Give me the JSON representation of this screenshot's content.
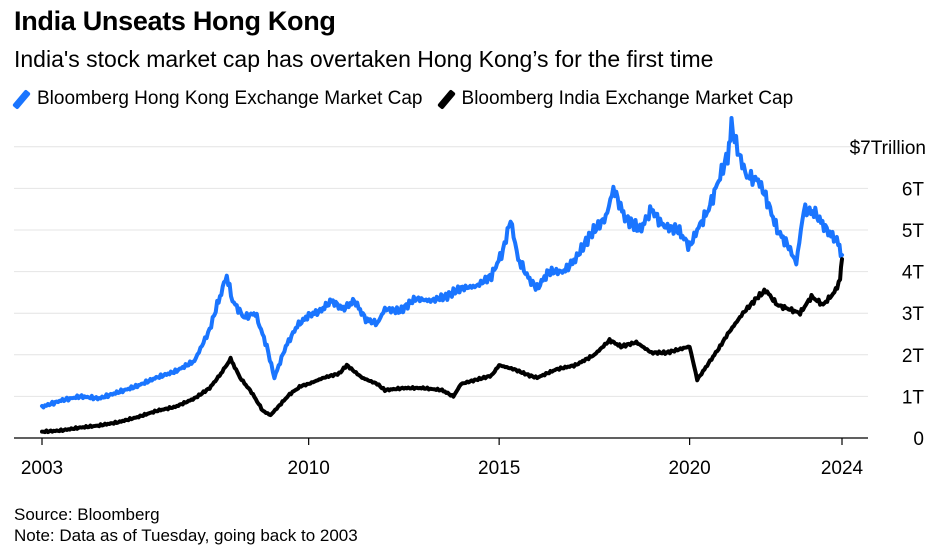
{
  "chart_data": {
    "type": "line",
    "title": "India Unseats Hong Kong",
    "subtitle": "India's stock market cap has overtaken Hong Kong’s for the first time",
    "unit_label": "$7Trillion",
    "y_ticks": [
      {
        "value": 0,
        "label": "0"
      },
      {
        "value": 1,
        "label": "1T"
      },
      {
        "value": 2,
        "label": "2T"
      },
      {
        "value": 3,
        "label": "3T"
      },
      {
        "value": 4,
        "label": "4T"
      },
      {
        "value": 5,
        "label": "5T"
      },
      {
        "value": 6,
        "label": "6T"
      }
    ],
    "x_ticks": [
      {
        "value": 2003,
        "label": "2003"
      },
      {
        "value": 2010,
        "label": "2010"
      },
      {
        "value": 2015,
        "label": "2015"
      },
      {
        "value": 2020,
        "label": "2020"
      },
      {
        "value": 2024,
        "label": "2024"
      }
    ],
    "xlim": [
      2003,
      2024.2
    ],
    "ylim": [
      0,
      7
    ],
    "series": [
      {
        "name": "Bloomberg Hong Kong Exchange Market Cap",
        "color": "#1a75ff",
        "x": [
          2003.0,
          2003.5,
          2004.0,
          2004.5,
          2005.0,
          2005.5,
          2006.0,
          2006.5,
          2007.0,
          2007.4,
          2007.6,
          2007.85,
          2008.0,
          2008.3,
          2008.6,
          2008.9,
          2009.1,
          2009.4,
          2009.7,
          2010.0,
          2010.3,
          2010.6,
          2010.9,
          2011.2,
          2011.5,
          2011.8,
          2012.0,
          2012.4,
          2012.8,
          2013.2,
          2013.6,
          2014.0,
          2014.4,
          2014.8,
          2015.1,
          2015.3,
          2015.5,
          2015.8,
          2016.0,
          2016.3,
          2016.7,
          2017.0,
          2017.4,
          2017.8,
          2018.0,
          2018.3,
          2018.7,
          2019.0,
          2019.3,
          2019.7,
          2020.0,
          2020.2,
          2020.5,
          2020.8,
          2021.0,
          2021.1,
          2021.3,
          2021.5,
          2021.8,
          2022.0,
          2022.3,
          2022.6,
          2022.8,
          2023.0,
          2023.3,
          2023.6,
          2023.9,
          2024.0
        ],
        "values": [
          0.75,
          0.9,
          1.0,
          0.95,
          1.1,
          1.25,
          1.45,
          1.6,
          1.85,
          2.6,
          3.2,
          3.9,
          3.3,
          2.9,
          3.0,
          2.2,
          1.45,
          2.2,
          2.7,
          2.95,
          3.05,
          3.3,
          3.1,
          3.3,
          2.85,
          2.75,
          3.1,
          3.05,
          3.35,
          3.3,
          3.4,
          3.6,
          3.65,
          3.9,
          4.5,
          5.25,
          4.3,
          3.8,
          3.6,
          4.0,
          4.0,
          4.3,
          4.9,
          5.3,
          6.0,
          5.3,
          5.0,
          5.5,
          5.1,
          5.0,
          4.6,
          5.0,
          5.5,
          6.3,
          6.8,
          7.5,
          6.8,
          6.3,
          6.2,
          5.8,
          5.0,
          4.6,
          4.2,
          5.5,
          5.4,
          5.0,
          4.7,
          4.4
        ]
      },
      {
        "name": "Bloomberg India Exchange Market Cap",
        "color": "#000000",
        "x": [
          2003.0,
          2003.5,
          2004.0,
          2004.5,
          2005.0,
          2005.5,
          2006.0,
          2006.5,
          2007.0,
          2007.4,
          2007.7,
          2007.95,
          2008.2,
          2008.5,
          2008.8,
          2009.0,
          2009.2,
          2009.5,
          2009.8,
          2010.0,
          2010.4,
          2010.8,
          2011.0,
          2011.4,
          2011.8,
          2012.0,
          2012.5,
          2013.0,
          2013.5,
          2013.8,
          2014.0,
          2014.4,
          2014.8,
          2015.0,
          2015.4,
          2015.8,
          2016.0,
          2016.5,
          2017.0,
          2017.5,
          2017.9,
          2018.2,
          2018.6,
          2019.0,
          2019.4,
          2019.8,
          2020.0,
          2020.2,
          2020.5,
          2020.8,
          2021.0,
          2021.4,
          2021.8,
          2022.0,
          2022.3,
          2022.6,
          2022.9,
          2023.2,
          2023.5,
          2023.8,
          2023.95,
          2024.0
        ],
        "values": [
          0.15,
          0.18,
          0.25,
          0.3,
          0.38,
          0.5,
          0.65,
          0.75,
          0.95,
          1.2,
          1.55,
          1.9,
          1.45,
          1.1,
          0.65,
          0.55,
          0.75,
          1.05,
          1.25,
          1.3,
          1.45,
          1.55,
          1.75,
          1.45,
          1.3,
          1.15,
          1.2,
          1.2,
          1.15,
          1.0,
          1.3,
          1.4,
          1.5,
          1.75,
          1.65,
          1.5,
          1.45,
          1.65,
          1.75,
          2.0,
          2.35,
          2.2,
          2.3,
          2.05,
          2.05,
          2.15,
          2.2,
          1.4,
          1.8,
          2.2,
          2.5,
          3.0,
          3.4,
          3.55,
          3.2,
          3.1,
          3.0,
          3.4,
          3.2,
          3.5,
          3.8,
          4.3
        ]
      }
    ]
  },
  "footer": {
    "source": "Source: Bloomberg",
    "note": "Note: Data as of Tuesday, going back to 2003"
  }
}
